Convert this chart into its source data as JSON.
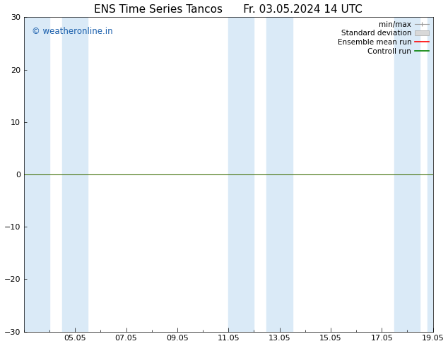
{
  "title": "ENS Time Series Tancos      Fr. 03.05.2024 14 UTC",
  "ylim": [
    -30,
    30
  ],
  "yticks": [
    -30,
    -20,
    -10,
    0,
    10,
    20,
    30
  ],
  "xlim": [
    0,
    16
  ],
  "xtick_labels": [
    "05.05",
    "07.05",
    "09.05",
    "11.05",
    "13.05",
    "15.05",
    "17.05",
    "19.05"
  ],
  "xtick_positions": [
    2,
    4,
    6,
    8,
    10,
    12,
    14,
    16
  ],
  "shaded_bands": [
    [
      0.0,
      1.0
    ],
    [
      1.5,
      2.5
    ],
    [
      8.0,
      9.0
    ],
    [
      9.5,
      10.5
    ],
    [
      14.5,
      15.5
    ],
    [
      15.8,
      16.0
    ]
  ],
  "shaded_color": "#daeaf7",
  "background_color": "#ffffff",
  "zero_line_color": "#4d7a1a",
  "zero_line_y": 0,
  "watermark_text": "© weatheronline.in",
  "watermark_color": "#1a5fac",
  "legend_labels": [
    "min/max",
    "Standard deviation",
    "Ensemble mean run",
    "Controll run"
  ],
  "legend_colors": [
    "#aaaaaa",
    "#cccccc",
    "red",
    "green"
  ],
  "title_fontsize": 11,
  "tick_fontsize": 8,
  "legend_fontsize": 7.5,
  "fig_width": 6.34,
  "fig_height": 4.9,
  "dpi": 100
}
